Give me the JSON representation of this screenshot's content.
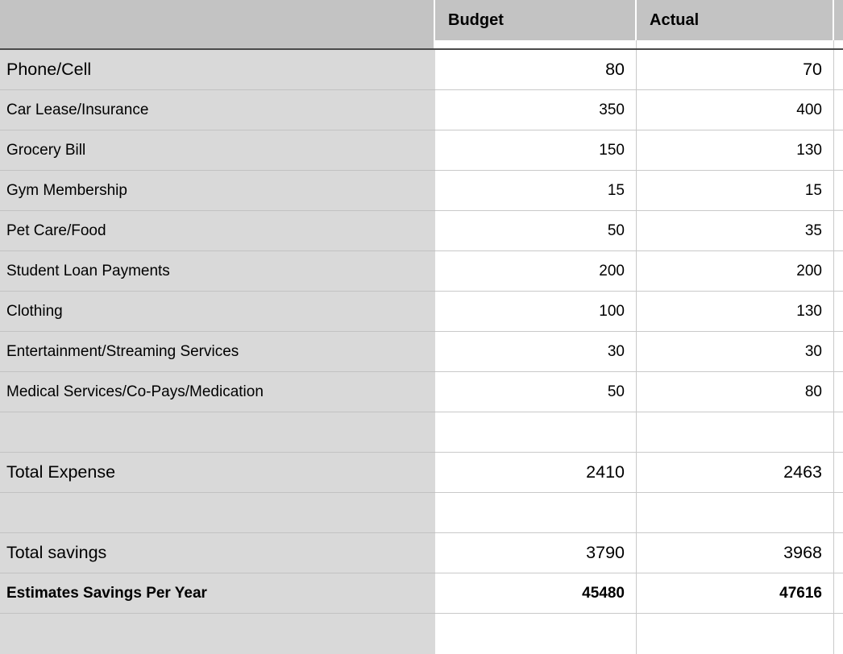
{
  "table": {
    "header": {
      "row_label": "",
      "budget": "Budget",
      "actual": "Actual"
    },
    "rows": [
      {
        "label": "Phone/Cell",
        "budget": "80",
        "actual": "70",
        "style": "large"
      },
      {
        "label": "Car Lease/Insurance",
        "budget": "350",
        "actual": "400",
        "style": "regular"
      },
      {
        "label": "Grocery Bill",
        "budget": "150",
        "actual": "130",
        "style": "regular"
      },
      {
        "label": "Gym Membership",
        "budget": "15",
        "actual": "15",
        "style": "regular"
      },
      {
        "label": "Pet Care/Food",
        "budget": "50",
        "actual": "35",
        "style": "regular"
      },
      {
        "label": "Student Loan Payments",
        "budget": "200",
        "actual": "200",
        "style": "regular"
      },
      {
        "label": "Clothing",
        "budget": "100",
        "actual": "130",
        "style": "regular"
      },
      {
        "label": "Entertainment/Streaming Services",
        "budget": "30",
        "actual": "30",
        "style": "regular"
      },
      {
        "label": "Medical Services/Co-Pays/Medication",
        "budget": "50",
        "actual": "80",
        "style": "regular"
      },
      {
        "label": "",
        "budget": "",
        "actual": "",
        "style": "empty"
      },
      {
        "label": "Total Expense",
        "budget": "2410",
        "actual": "2463",
        "style": "large"
      },
      {
        "label": "",
        "budget": "",
        "actual": "",
        "style": "empty"
      },
      {
        "label": "Total savings",
        "budget": "3790",
        "actual": "3968",
        "style": "large"
      },
      {
        "label": "Estimates Savings Per Year",
        "budget": "45480",
        "actual": "47616",
        "style": "bold"
      },
      {
        "label": "",
        "budget": "",
        "actual": "",
        "style": "empty"
      }
    ],
    "colors": {
      "header_bg": "#c3c3c3",
      "label_col_bg": "#d9d9d9",
      "grid_line": "#c9c9c9",
      "header_divider": "#4a4a4a"
    }
  }
}
